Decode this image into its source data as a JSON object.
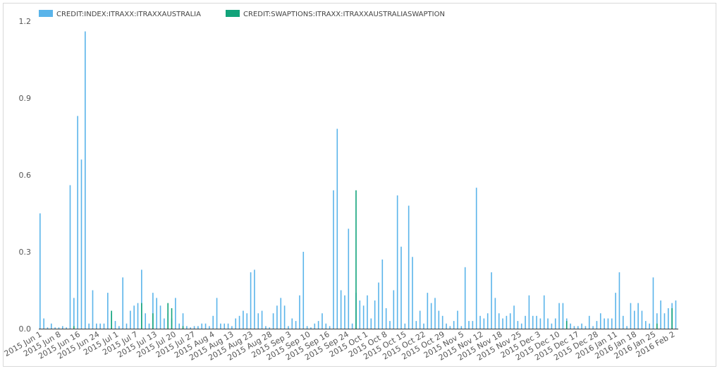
{
  "chart_data": {
    "type": "bar",
    "title": "",
    "xlabel": "",
    "ylabel": "",
    "ylim": [
      0,
      1.2
    ],
    "yticks": [
      "0.0",
      "0.3",
      "0.6",
      "0.9",
      "1.2"
    ],
    "grid": false,
    "legend_position": "top-left",
    "x_tick_labels": [
      "2015 Jun 1",
      "2015 Jun 8",
      "2015 Jun 16",
      "2015 Jun 24",
      "2015 Jul 1",
      "2015 Jul 7",
      "2015 Jul 13",
      "2015 Jul 20",
      "2015 Jul 27",
      "2015 Aug 4",
      "2015 Aug 13",
      "2015 Aug 23",
      "2015 Aug 28",
      "2015 Sep 3",
      "2015 Sep 10",
      "2015 Sep 16",
      "2015 Sep 24",
      "2015 Oct 1",
      "2015 Oct 8",
      "2015 Oct 15",
      "2015 Oct 22",
      "2015 Oct 29",
      "2015 Nov 5",
      "2015 Nov 12",
      "2015 Nov 18",
      "2015 Nov 25",
      "2015 Dec 3",
      "2015 Dec 10",
      "2015 Dec 17",
      "2015 Dec 28",
      "2016 Jan 11",
      "2016 Jan 18",
      "2016 Jan 25",
      "2016 Feb 2"
    ],
    "series": [
      {
        "name": "CREDIT:INDEX:ITRAXX:ITRAXXAUSTRALIA",
        "color": "#5ab4ea",
        "values": [
          0.45,
          0.04,
          0.005,
          0.02,
          0.005,
          0.005,
          0.01,
          0.005,
          0.56,
          0.12,
          0.83,
          0.66,
          1.16,
          0.02,
          0.15,
          0.02,
          0.02,
          0.02,
          0.14,
          0.06,
          0.03,
          0.01,
          0.2,
          0.02,
          0.07,
          0.09,
          0.1,
          0.23,
          0.06,
          0.02,
          0.14,
          0.12,
          0.09,
          0.04,
          0.06,
          0.04,
          0.12,
          0.02,
          0.06,
          0.01,
          0.005,
          0.01,
          0.01,
          0.02,
          0.02,
          0.01,
          0.05,
          0.12,
          0.02,
          0.02,
          0.02,
          0.01,
          0.04,
          0.05,
          0.07,
          0.06,
          0.22,
          0.23,
          0.06,
          0.07,
          0.01,
          0.005,
          0.06,
          0.09,
          0.12,
          0.09,
          0.01,
          0.04,
          0.03,
          0.13,
          0.3,
          0.01,
          0.005,
          0.02,
          0.03,
          0.06,
          0.02,
          0.01,
          0.54,
          0.78,
          0.15,
          0.13,
          0.39,
          0.02,
          0.14,
          0.11,
          0.09,
          0.13,
          0.04,
          0.11,
          0.18,
          0.27,
          0.08,
          0.03,
          0.15,
          0.52,
          0.32,
          0.02,
          0.48,
          0.28,
          0.03,
          0.07,
          0.02,
          0.14,
          0.1,
          0.12,
          0.07,
          0.05,
          0.02,
          0.01,
          0.03,
          0.07,
          0.01,
          0.24,
          0.03,
          0.03,
          0.55,
          0.05,
          0.04,
          0.06,
          0.22,
          0.12,
          0.06,
          0.04,
          0.05,
          0.06,
          0.09,
          0.03,
          0.02,
          0.05,
          0.13,
          0.05,
          0.05,
          0.04,
          0.13,
          0.04,
          0.02,
          0.04,
          0.1,
          0.1,
          0.04,
          0.02,
          0.01,
          0.01,
          0.02,
          0.01,
          0.05,
          0.01,
          0.03,
          0.06,
          0.04,
          0.04,
          0.04,
          0.14,
          0.22,
          0.05,
          0.01,
          0.1,
          0.07,
          0.1,
          0.07,
          0.03,
          0.02,
          0.2,
          0.06,
          0.11,
          0.06,
          0.08,
          0.1,
          0.11
        ]
      },
      {
        "name": "CREDIT:SWAPTIONS:ITRAXX:ITRAXXAUSTRALIASWAPTION",
        "color": "#12a37a",
        "values": [
          0,
          0,
          0,
          0,
          0,
          0,
          0,
          0,
          0,
          0.01,
          0,
          0,
          0,
          0,
          0,
          0,
          0,
          0,
          0,
          0.07,
          0,
          0,
          0,
          0,
          0,
          0,
          0,
          0.1,
          0,
          0,
          0.06,
          0,
          0,
          0,
          0.1,
          0.08,
          0,
          0,
          0.01,
          0,
          0,
          0,
          0,
          0,
          0,
          0,
          0,
          0,
          0,
          0,
          0,
          0,
          0,
          0,
          0,
          0,
          0,
          0,
          0,
          0,
          0,
          0,
          0,
          0,
          0,
          0,
          0,
          0,
          0,
          0,
          0,
          0,
          0,
          0,
          0,
          0,
          0,
          0,
          0,
          0,
          0,
          0,
          0,
          0,
          0.54,
          0,
          0,
          0,
          0,
          0,
          0,
          0,
          0,
          0,
          0,
          0,
          0,
          0,
          0,
          0,
          0,
          0,
          0,
          0,
          0,
          0,
          0,
          0,
          0,
          0,
          0,
          0,
          0,
          0,
          0,
          0,
          0,
          0,
          0,
          0,
          0,
          0,
          0,
          0,
          0,
          0,
          0,
          0,
          0,
          0,
          0,
          0,
          0,
          0,
          0,
          0,
          0,
          0,
          0,
          0,
          0.03,
          0,
          0,
          0,
          0,
          0,
          0,
          0,
          0,
          0,
          0,
          0,
          0,
          0,
          0,
          0,
          0,
          0,
          0,
          0,
          0,
          0,
          0,
          0,
          0.02,
          0,
          0,
          0,
          0.08,
          0,
          0
        ]
      }
    ]
  }
}
